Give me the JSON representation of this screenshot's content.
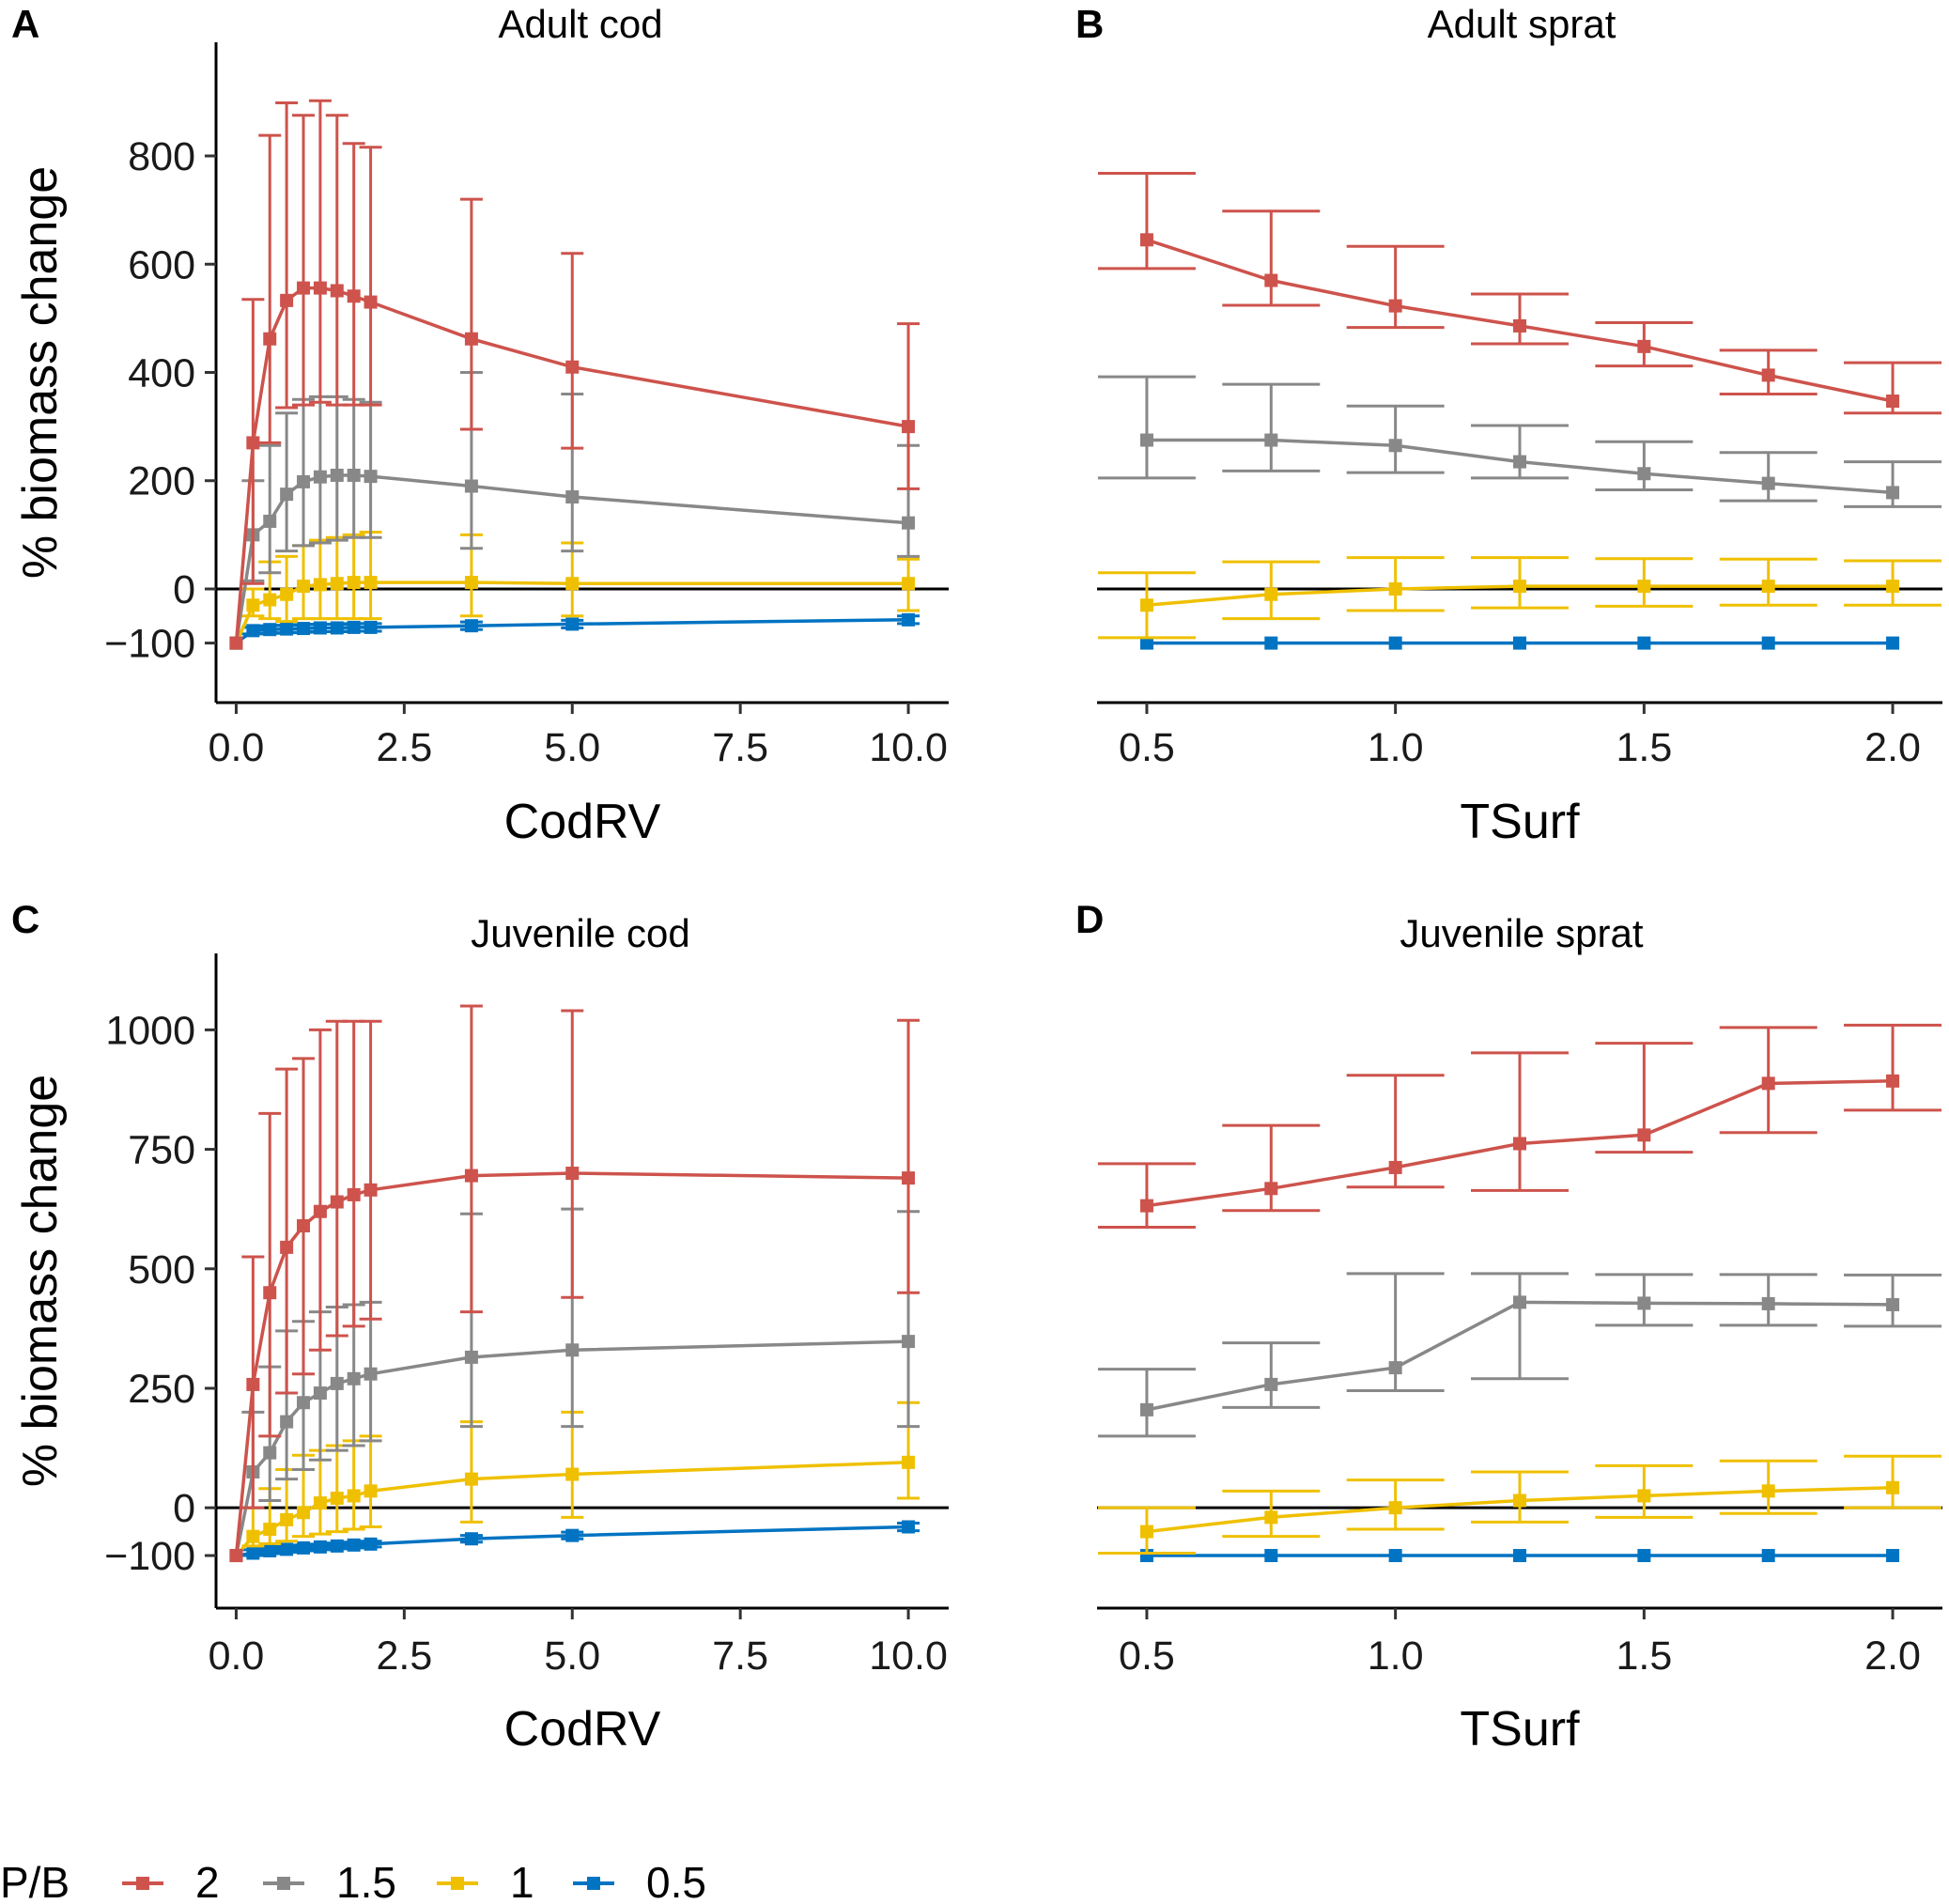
{
  "chart_data": [
    {
      "type": "line",
      "tag": "A",
      "title": "Adult cod",
      "xlabel": "CodRV",
      "ylabel": "% biomass change",
      "xlim": [
        -0.3,
        10.6
      ],
      "ylim": [
        -210,
        1010
      ],
      "xticks": [
        0.0,
        2.5,
        5.0,
        7.5,
        10.0
      ],
      "xtick_labels": [
        "0.0",
        "2.5",
        "5.0",
        "7.5",
        "10.0"
      ],
      "yticks": [
        -100,
        0,
        200,
        400,
        600,
        800
      ],
      "ytick_labels": [
        "−100",
        "0",
        "200",
        "400",
        "600",
        "800"
      ],
      "x_axis_line": "full",
      "x": [
        0.0,
        0.25,
        0.5,
        0.75,
        1.0,
        1.25,
        1.5,
        1.75,
        2.0,
        3.5,
        5.0,
        10.0
      ],
      "series": [
        {
          "name": "2",
          "color": "#cd534c",
          "y": [
            -100,
            270,
            462,
            533,
            556,
            556,
            551,
            541,
            530,
            462,
            410,
            300
          ],
          "lower": [
            -100,
            10,
            270,
            335,
            340,
            345,
            340,
            340,
            340,
            295,
            260,
            185
          ],
          "upper": [
            -100,
            535,
            838,
            898,
            875,
            902,
            875,
            823,
            816,
            720,
            620,
            490
          ]
        },
        {
          "name": "1.5",
          "color": "#888888",
          "y": [
            -100,
            100,
            125,
            175,
            198,
            207,
            210,
            210,
            208,
            190,
            170,
            122
          ],
          "lower": [
            -100,
            15,
            30,
            70,
            80,
            85,
            90,
            95,
            95,
            75,
            70,
            60
          ],
          "upper": [
            -100,
            200,
            265,
            325,
            350,
            355,
            355,
            350,
            345,
            400,
            360,
            265
          ]
        },
        {
          "name": "1",
          "color": "#efc000",
          "y": [
            -100,
            -30,
            -20,
            -10,
            5,
            8,
            10,
            12,
            12,
            12,
            10,
            10
          ],
          "lower": [
            -100,
            -50,
            -55,
            -60,
            -55,
            -55,
            -55,
            -55,
            -55,
            -50,
            -50,
            -40
          ],
          "upper": [
            -100,
            0,
            50,
            60,
            80,
            90,
            95,
            100,
            105,
            100,
            85,
            55
          ]
        },
        {
          "name": "0.5",
          "color": "#0073c2",
          "y": [
            -100,
            -77,
            -75,
            -74,
            -73,
            -72,
            -72,
            -71,
            -71,
            -68,
            -65,
            -57
          ],
          "lower": [
            -100,
            -83,
            -82,
            -81,
            -80,
            -79,
            -79,
            -78,
            -78,
            -75,
            -72,
            -64
          ],
          "upper": [
            -100,
            -71,
            -68,
            -67,
            -66,
            -65,
            -65,
            -64,
            -64,
            -61,
            -58,
            -50
          ]
        }
      ]
    },
    {
      "type": "line",
      "tag": "B",
      "title": "Adult sprat",
      "xlabel": "TSurf",
      "ylabel": "",
      "xlim": [
        0.4,
        2.1
      ],
      "ylim": [
        -210,
        1010
      ],
      "xticks": [
        0.5,
        1.0,
        1.5,
        2.0
      ],
      "xtick_labels": [
        "0.5",
        "1.0",
        "1.5",
        "2.0"
      ],
      "yticks": [],
      "ytick_labels": [],
      "x_axis_line": "full",
      "x": [
        0.5,
        0.75,
        1.0,
        1.25,
        1.5,
        1.75,
        2.0
      ],
      "series": [
        {
          "name": "2",
          "color": "#cd534c",
          "y": [
            645,
            570,
            523,
            486,
            448,
            395,
            347
          ],
          "lower": [
            592,
            524,
            483,
            453,
            412,
            360,
            325
          ],
          "upper": [
            768,
            698,
            633,
            545,
            492,
            441,
            418
          ]
        },
        {
          "name": "1.5",
          "color": "#888888",
          "y": [
            275,
            275,
            265,
            235,
            213,
            195,
            178
          ],
          "lower": [
            205,
            218,
            215,
            205,
            183,
            163,
            152
          ],
          "upper": [
            392,
            378,
            338,
            302,
            272,
            252,
            235
          ]
        },
        {
          "name": "1",
          "color": "#efc000",
          "y": [
            -30,
            -10,
            0,
            5,
            5,
            5,
            5
          ],
          "lower": [
            -90,
            -55,
            -40,
            -35,
            -32,
            -30,
            -30
          ],
          "upper": [
            30,
            50,
            58,
            58,
            56,
            55,
            52
          ]
        },
        {
          "name": "0.5",
          "color": "#0073c2",
          "y": [
            -100,
            -100,
            -100,
            -100,
            -100,
            -100,
            -100
          ],
          "lower": [
            -100,
            -100,
            -100,
            -100,
            -100,
            -100,
            -100
          ],
          "upper": [
            -100,
            -100,
            -100,
            -100,
            -100,
            -100,
            -100
          ]
        }
      ]
    },
    {
      "type": "line",
      "tag": "C",
      "title": "Juvenile cod",
      "xlabel": "CodRV",
      "ylabel": "% biomass change",
      "xlim": [
        -0.3,
        10.6
      ],
      "ylim": [
        -210,
        1160
      ],
      "xticks": [
        0.0,
        2.5,
        5.0,
        7.5,
        10.0
      ],
      "xtick_labels": [
        "0.0",
        "2.5",
        "5.0",
        "7.5",
        "10.0"
      ],
      "yticks": [
        -100,
        0,
        250,
        500,
        750,
        1000
      ],
      "ytick_labels": [
        "−100",
        "0",
        "250",
        "500",
        "750",
        "1000"
      ],
      "x_axis_line": "full",
      "x": [
        0.0,
        0.25,
        0.5,
        0.75,
        1.0,
        1.25,
        1.5,
        1.75,
        2.0,
        3.5,
        5.0,
        10.0
      ],
      "series": [
        {
          "name": "2",
          "color": "#cd534c",
          "y": [
            -100,
            258,
            450,
            545,
            590,
            620,
            640,
            655,
            665,
            695,
            700,
            690
          ],
          "lower": [
            -100,
            0,
            150,
            240,
            280,
            330,
            360,
            380,
            395,
            410,
            440,
            450
          ],
          "upper": [
            -100,
            525,
            825,
            918,
            940,
            1000,
            1018,
            1018,
            1018,
            1050,
            1040,
            1020
          ]
        },
        {
          "name": "1.5",
          "color": "#888888",
          "y": [
            -100,
            75,
            115,
            180,
            220,
            240,
            260,
            270,
            280,
            315,
            330,
            348
          ],
          "lower": [
            -100,
            0,
            15,
            60,
            80,
            100,
            120,
            130,
            140,
            170,
            170,
            170
          ],
          "upper": [
            -100,
            200,
            295,
            370,
            390,
            410,
            420,
            425,
            430,
            615,
            625,
            620
          ]
        },
        {
          "name": "1",
          "color": "#efc000",
          "y": [
            -100,
            -60,
            -45,
            -25,
            -10,
            10,
            20,
            25,
            35,
            60,
            70,
            95
          ],
          "lower": [
            -100,
            -80,
            -75,
            -70,
            -60,
            -55,
            -50,
            -45,
            -40,
            -30,
            -20,
            20
          ],
          "upper": [
            -100,
            0,
            40,
            80,
            110,
            120,
            130,
            140,
            150,
            180,
            200,
            220
          ]
        },
        {
          "name": "0.5",
          "color": "#0073c2",
          "y": [
            -100,
            -95,
            -90,
            -87,
            -84,
            -82,
            -80,
            -78,
            -76,
            -65,
            -58,
            -40
          ],
          "lower": [
            -100,
            -100,
            -96,
            -93,
            -90,
            -88,
            -86,
            -84,
            -82,
            -72,
            -65,
            -48
          ],
          "upper": [
            -100,
            -88,
            -84,
            -81,
            -78,
            -76,
            -74,
            -72,
            -70,
            -58,
            -51,
            -32
          ]
        }
      ]
    },
    {
      "type": "line",
      "tag": "D",
      "title": "Juvenile sprat",
      "xlabel": "TSurf",
      "ylabel": "",
      "xlim": [
        0.4,
        2.1
      ],
      "ylim": [
        -210,
        1160
      ],
      "xticks": [
        0.5,
        1.0,
        1.5,
        2.0
      ],
      "xtick_labels": [
        "0.5",
        "1.0",
        "1.5",
        "2.0"
      ],
      "yticks": [],
      "ytick_labels": [],
      "x_axis_line": "full",
      "x": [
        0.5,
        0.75,
        1.0,
        1.25,
        1.5,
        1.75,
        2.0
      ],
      "series": [
        {
          "name": "2",
          "color": "#cd534c",
          "y": [
            632,
            668,
            712,
            762,
            780,
            888,
            893
          ],
          "lower": [
            587,
            622,
            671,
            664,
            744,
            785,
            832
          ],
          "upper": [
            720,
            800,
            905,
            952,
            972,
            1005,
            1010
          ]
        },
        {
          "name": "1.5",
          "color": "#888888",
          "y": [
            205,
            258,
            293,
            430,
            428,
            427,
            425
          ],
          "lower": [
            150,
            210,
            245,
            270,
            382,
            382,
            380
          ],
          "upper": [
            290,
            345,
            490,
            490,
            488,
            488,
            487
          ]
        },
        {
          "name": "1",
          "color": "#efc000",
          "y": [
            -50,
            -20,
            0,
            15,
            25,
            35,
            42
          ],
          "lower": [
            -95,
            -60,
            -45,
            -30,
            -20,
            -12,
            0
          ],
          "upper": [
            0,
            35,
            58,
            75,
            88,
            98,
            108
          ]
        },
        {
          "name": "0.5",
          "color": "#0073c2",
          "y": [
            -100,
            -100,
            -100,
            -100,
            -100,
            -100,
            -100
          ],
          "lower": [
            -100,
            -100,
            -100,
            -100,
            -100,
            -100,
            -100
          ],
          "upper": [
            -100,
            -100,
            -100,
            -100,
            -100,
            -100,
            -100
          ]
        }
      ]
    }
  ],
  "legend": {
    "title": "P/B",
    "position": "bottom-left",
    "entries": [
      {
        "label": "2",
        "color": "#cd534c"
      },
      {
        "label": "1.5",
        "color": "#888888"
      },
      {
        "label": "1",
        "color": "#efc000"
      },
      {
        "label": "0.5",
        "color": "#0073c2"
      }
    ]
  }
}
